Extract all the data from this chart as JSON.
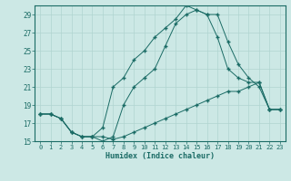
{
  "xlabel": "Humidex (Indice chaleur)",
  "ylabel": "",
  "bg_color": "#cce8e5",
  "grid_color": "#b0d4d0",
  "line_color": "#1a6b65",
  "xlim": [
    -0.5,
    23.5
  ],
  "ylim": [
    15,
    30
  ],
  "yticks": [
    15,
    17,
    19,
    21,
    23,
    25,
    27,
    29
  ],
  "xticks": [
    0,
    1,
    2,
    3,
    4,
    5,
    6,
    7,
    8,
    9,
    10,
    11,
    12,
    13,
    14,
    15,
    16,
    17,
    18,
    19,
    20,
    21,
    22,
    23
  ],
  "line1_x": [
    0,
    1,
    2,
    3,
    4,
    5,
    6,
    7,
    8,
    9,
    10,
    11,
    12,
    13,
    14,
    15,
    16,
    17,
    18,
    19,
    20,
    21,
    22,
    23
  ],
  "line1_y": [
    18,
    18,
    17.5,
    16,
    15.5,
    15.5,
    15.5,
    15.2,
    15.5,
    16,
    16.5,
    17,
    17.5,
    18,
    18.5,
    19,
    19.5,
    20,
    20.5,
    20.5,
    21,
    21.5,
    18.5,
    18.5
  ],
  "line2_x": [
    0,
    1,
    2,
    3,
    4,
    5,
    6,
    7,
    8,
    9,
    10,
    11,
    12,
    13,
    14,
    15,
    16,
    17,
    18,
    19,
    20,
    21,
    22,
    23
  ],
  "line2_y": [
    18,
    18,
    17.5,
    16,
    15.5,
    15.5,
    15,
    15.5,
    19,
    21,
    22,
    23,
    25.5,
    28,
    29,
    29.5,
    29,
    26.5,
    23,
    22,
    21.5,
    21.5,
    18.5,
    18.5
  ],
  "line3_x": [
    0,
    1,
    2,
    3,
    4,
    5,
    6,
    7,
    8,
    9,
    10,
    11,
    12,
    13,
    14,
    15,
    16,
    17,
    18,
    19,
    20,
    21,
    22,
    23
  ],
  "line3_y": [
    18,
    18,
    17.5,
    16,
    15.5,
    15.5,
    16.5,
    21,
    22,
    24,
    25,
    26.5,
    27.5,
    28.5,
    30,
    29.5,
    29,
    29,
    26,
    23.5,
    22,
    21,
    18.5,
    18.5
  ]
}
